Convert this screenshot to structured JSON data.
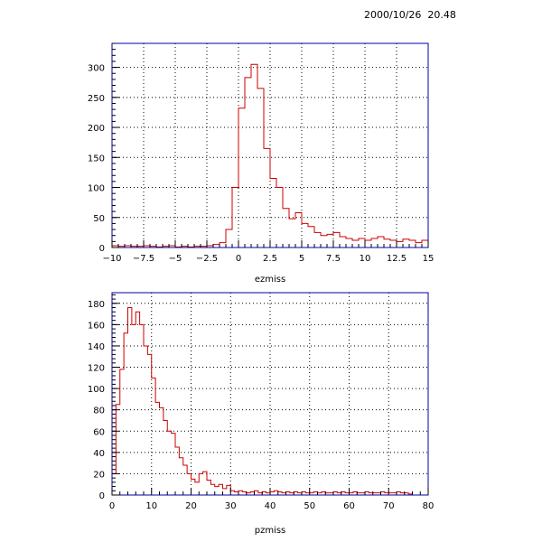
{
  "timestamp": "2000/10/26  20.48",
  "colors": {
    "frame": "#0000aa",
    "hist": "#cc0000",
    "grid": "#000000"
  },
  "chart_data": [
    {
      "type": "histogram",
      "xlabel": "ezmiss",
      "xlim": [
        -10,
        15
      ],
      "ylim": [
        0,
        340
      ],
      "grid": true,
      "x_ticks": [
        -10,
        -7.5,
        -5,
        -2.5,
        0,
        2.5,
        5,
        7.5,
        10,
        12.5,
        15
      ],
      "x_tick_labels": [
        "−10",
        "−7.5",
        "−5",
        "−2.5",
        "0",
        "2.5",
        "5",
        "7.5",
        "10",
        "12.5",
        "15"
      ],
      "y_ticks": [
        0,
        50,
        100,
        150,
        200,
        250,
        300
      ],
      "y_tick_labels": [
        "0",
        "50",
        "100",
        "150",
        "200",
        "250",
        "300"
      ],
      "bin_start": -10,
      "bin_width": 0.5,
      "values": [
        3,
        2,
        3,
        2,
        2,
        3,
        2,
        1,
        2,
        3,
        1,
        2,
        1,
        2,
        2,
        3,
        5,
        8,
        30,
        100,
        232,
        283,
        305,
        265,
        165,
        115,
        100,
        65,
        48,
        58,
        40,
        35,
        25,
        20,
        22,
        25,
        18,
        15,
        12,
        15,
        12,
        15,
        18,
        14,
        12,
        10,
        14,
        12,
        8,
        12
      ]
    },
    {
      "type": "histogram",
      "xlabel": "pzmiss",
      "xlim": [
        0,
        80
      ],
      "ylim": [
        0,
        190
      ],
      "grid": true,
      "x_ticks": [
        0,
        10,
        20,
        30,
        40,
        50,
        60,
        70,
        80
      ],
      "x_tick_labels": [
        "0",
        "10",
        "20",
        "30",
        "40",
        "50",
        "60",
        "70",
        "80"
      ],
      "y_ticks": [
        0,
        20,
        40,
        60,
        80,
        100,
        120,
        140,
        160,
        180
      ],
      "y_tick_labels": [
        "0",
        "20",
        "40",
        "60",
        "80",
        "100",
        "120",
        "140",
        "160",
        "180"
      ],
      "bin_start": 0,
      "bin_width": 1,
      "values": [
        20,
        85,
        118,
        152,
        176,
        160,
        172,
        160,
        140,
        132,
        110,
        87,
        82,
        70,
        60,
        58,
        45,
        35,
        28,
        20,
        15,
        12,
        20,
        22,
        14,
        10,
        8,
        10,
        6,
        9,
        4,
        3,
        4,
        3,
        2,
        3,
        4,
        2,
        3,
        2,
        3,
        4,
        3,
        2,
        3,
        2,
        3,
        2,
        3,
        2,
        2,
        3,
        2,
        3,
        2,
        2,
        3,
        2,
        3,
        2,
        2,
        3,
        2,
        2,
        3,
        2,
        2,
        2,
        3,
        2,
        2,
        2,
        3,
        2,
        2,
        1
      ]
    }
  ]
}
